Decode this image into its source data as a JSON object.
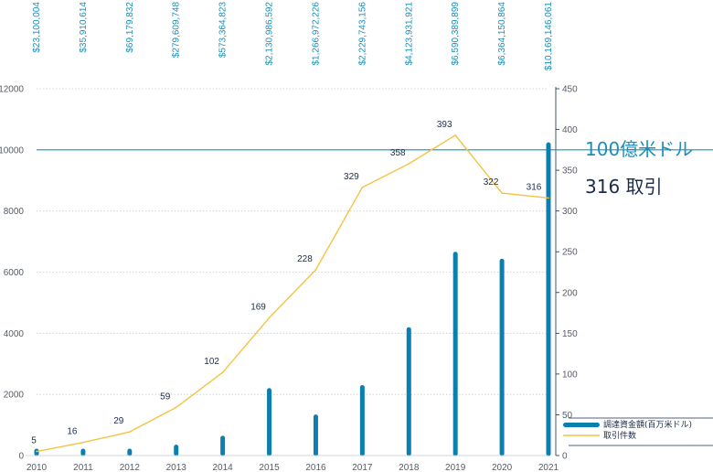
{
  "chart_data": {
    "type": "bar+line",
    "categories": [
      "2010",
      "2011",
      "2012",
      "2013",
      "2014",
      "2015",
      "2016",
      "2017",
      "2018",
      "2019",
      "2020",
      "2021"
    ],
    "top_labels": [
      "$23,100,004",
      "$35,910,614",
      "$69,179,832",
      "$279,609,748",
      "$573,364,823",
      "$2,130,986,592",
      "$1,266,972,226",
      "$2,229,743,156",
      "$4,123,931,921",
      "$6,590,389,899",
      "$6,364,150,864",
      "$10,169,146,061"
    ],
    "series": [
      {
        "name": "調達資金額(百万米ドル)",
        "type": "bar",
        "axis": "left",
        "color": "#0a7fb0",
        "values": [
          23.1,
          35.9,
          69.2,
          279.6,
          573.4,
          2131.0,
          1267.0,
          2229.7,
          4123.9,
          6590.4,
          6364.2,
          10169.1
        ]
      },
      {
        "name": "取引件数",
        "type": "line",
        "axis": "right",
        "color": "#f5c342",
        "values": [
          5,
          16,
          29,
          59,
          102,
          169,
          228,
          329,
          358,
          393,
          322,
          316
        ]
      }
    ],
    "y_left": {
      "min": 0,
      "max": 12000,
      "ticks": [
        0,
        2000,
        4000,
        6000,
        8000,
        10000,
        12000
      ]
    },
    "y_right": {
      "min": 0,
      "max": 450,
      "ticks": [
        0,
        50,
        100,
        150,
        200,
        250,
        300,
        350,
        400,
        450
      ]
    },
    "reference_line": {
      "value": 10000,
      "axis": "left",
      "color": "#1b8fb8"
    },
    "callouts": {
      "amount": "100億米ドル",
      "deals": "316 取引"
    },
    "legend": {
      "placement": "right"
    },
    "grid": true
  }
}
